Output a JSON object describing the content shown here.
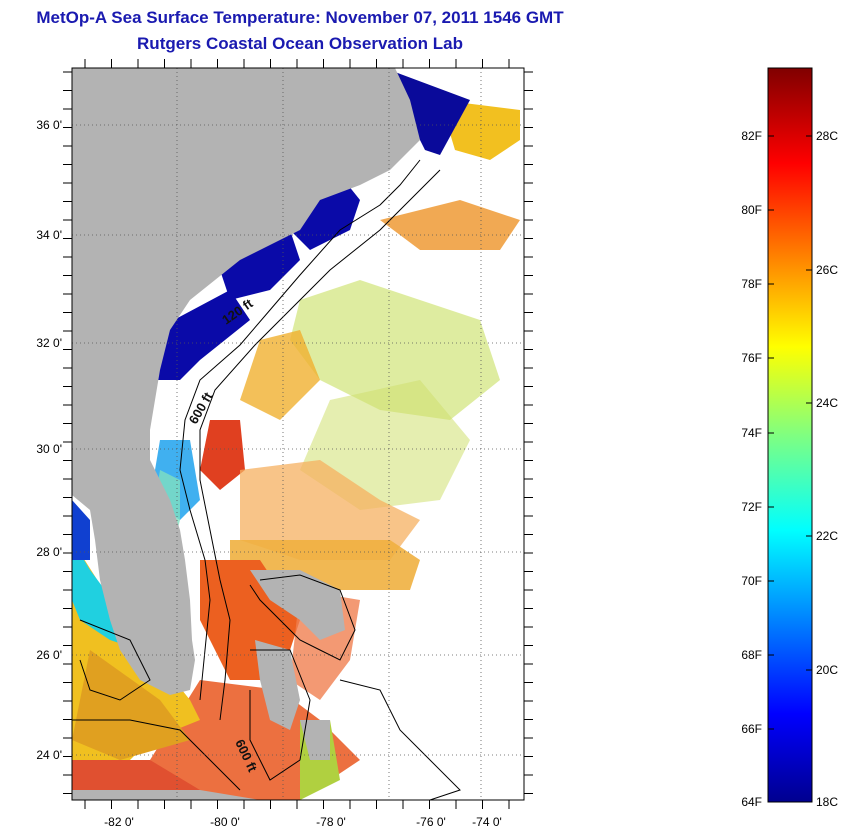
{
  "title": "MetOp-A Sea Surface Temperature:  November 07, 2011 1546 GMT",
  "subtitle": "Rutgers Coastal Ocean Observation Lab",
  "map": {
    "lon_labels": [
      "-82 0'",
      "-80 0'",
      "-78 0'",
      "-76 0'",
      "-74 0'"
    ],
    "lat_labels": [
      "36 0'",
      "34 0'",
      "32 0'",
      "30 0'",
      "28 0'",
      "26 0'",
      "24 0'"
    ],
    "contour_labels": [
      "120 ft",
      "600 ft",
      "600 ft"
    ],
    "colors": {
      "land": "#b3b3b3",
      "nodata": "#ffffff",
      "water_warm": "#f08020",
      "water_cold": "#0a0a9a"
    }
  },
  "colorbar": {
    "fahrenheit_labels": [
      "82F",
      "80F",
      "78F",
      "76F",
      "74F",
      "72F",
      "70F",
      "68F",
      "66F",
      "64F"
    ],
    "celsius_labels": [
      "28C",
      "26C",
      "24C",
      "22C",
      "20C",
      "18C"
    ]
  }
}
